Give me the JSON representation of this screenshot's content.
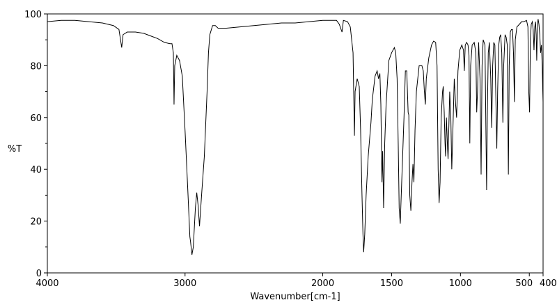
{
  "chart_data": {
    "type": "line",
    "title": "",
    "xlabel": "Wavenumber[cm-1]",
    "ylabel": "%T",
    "xlim": [
      4000,
      400
    ],
    "ylim": [
      0,
      100
    ],
    "x_reversed": true,
    "grid": false,
    "legend": "none",
    "line_color": "#000000",
    "x_ticks": [
      {
        "value": 4000,
        "label": "4000"
      },
      {
        "value": 3000,
        "label": "3000"
      },
      {
        "value": 2000,
        "label": "2000"
      },
      {
        "value": 1500,
        "label": "1500"
      },
      {
        "value": 1000,
        "label": "1000"
      },
      {
        "value": 500,
        "label": "500"
      },
      {
        "value": 400,
        "label": "400"
      }
    ],
    "y_ticks": [
      {
        "value": 0,
        "label": "0"
      },
      {
        "value": 20,
        "label": "20"
      },
      {
        "value": 40,
        "label": "40"
      },
      {
        "value": 60,
        "label": "60"
      },
      {
        "value": 80,
        "label": "80"
      },
      {
        "value": 100,
        "label": "100"
      }
    ],
    "series": [
      {
        "points": [
          [
            4000,
            97
          ],
          [
            3900,
            97.5
          ],
          [
            3800,
            97.5
          ],
          [
            3700,
            97
          ],
          [
            3600,
            96.5
          ],
          [
            3520,
            95.5
          ],
          [
            3480,
            94
          ],
          [
            3460,
            87
          ],
          [
            3450,
            92
          ],
          [
            3420,
            93
          ],
          [
            3360,
            93
          ],
          [
            3300,
            92.5
          ],
          [
            3250,
            91.5
          ],
          [
            3200,
            90.5
          ],
          [
            3150,
            89
          ],
          [
            3110,
            88.5
          ],
          [
            3095,
            88.5
          ],
          [
            3085,
            85
          ],
          [
            3080,
            65
          ],
          [
            3075,
            80
          ],
          [
            3060,
            84
          ],
          [
            3040,
            82
          ],
          [
            3020,
            76
          ],
          [
            3000,
            55
          ],
          [
            2980,
            32
          ],
          [
            2965,
            14
          ],
          [
            2960,
            12
          ],
          [
            2950,
            7
          ],
          [
            2940,
            10
          ],
          [
            2925,
            25
          ],
          [
            2915,
            31
          ],
          [
            2905,
            26
          ],
          [
            2895,
            18
          ],
          [
            2880,
            30
          ],
          [
            2860,
            45
          ],
          [
            2840,
            70
          ],
          [
            2830,
            85
          ],
          [
            2820,
            92
          ],
          [
            2800,
            95.5
          ],
          [
            2780,
            95.5
          ],
          [
            2760,
            94.5
          ],
          [
            2700,
            94.5
          ],
          [
            2600,
            95
          ],
          [
            2500,
            95.5
          ],
          [
            2400,
            96
          ],
          [
            2300,
            96.5
          ],
          [
            2200,
            96.5
          ],
          [
            2100,
            97
          ],
          [
            2000,
            97.5
          ],
          [
            1900,
            97.5
          ],
          [
            1880,
            96
          ],
          [
            1860,
            93
          ],
          [
            1850,
            97.5
          ],
          [
            1820,
            97
          ],
          [
            1800,
            95
          ],
          [
            1780,
            85
          ],
          [
            1770,
            53
          ],
          [
            1765,
            70
          ],
          [
            1750,
            75
          ],
          [
            1735,
            72
          ],
          [
            1725,
            55
          ],
          [
            1715,
            30
          ],
          [
            1708,
            15
          ],
          [
            1703,
            8
          ],
          [
            1695,
            15
          ],
          [
            1685,
            30
          ],
          [
            1670,
            45
          ],
          [
            1650,
            58
          ],
          [
            1640,
            67
          ],
          [
            1620,
            76
          ],
          [
            1605,
            78
          ],
          [
            1595,
            75
          ],
          [
            1585,
            77
          ],
          [
            1578,
            65
          ],
          [
            1570,
            35
          ],
          [
            1565,
            47
          ],
          [
            1558,
            25
          ],
          [
            1550,
            50
          ],
          [
            1540,
            65
          ],
          [
            1520,
            82
          ],
          [
            1500,
            85
          ],
          [
            1480,
            87
          ],
          [
            1470,
            85
          ],
          [
            1460,
            75
          ],
          [
            1452,
            50
          ],
          [
            1445,
            25
          ],
          [
            1437,
            19
          ],
          [
            1430,
            30
          ],
          [
            1420,
            45
          ],
          [
            1410,
            60
          ],
          [
            1400,
            78
          ],
          [
            1390,
            78
          ],
          [
            1380,
            62
          ],
          [
            1375,
            61
          ],
          [
            1368,
            30
          ],
          [
            1360,
            24
          ],
          [
            1352,
            35
          ],
          [
            1345,
            42
          ],
          [
            1338,
            35
          ],
          [
            1330,
            55
          ],
          [
            1320,
            70
          ],
          [
            1300,
            80
          ],
          [
            1280,
            80
          ],
          [
            1270,
            78
          ],
          [
            1262,
            70
          ],
          [
            1255,
            65
          ],
          [
            1248,
            75
          ],
          [
            1230,
            83
          ],
          [
            1210,
            88
          ],
          [
            1195,
            89.5
          ],
          [
            1180,
            89
          ],
          [
            1170,
            80
          ],
          [
            1162,
            40
          ],
          [
            1155,
            27
          ],
          [
            1148,
            35
          ],
          [
            1140,
            60
          ],
          [
            1130,
            70
          ],
          [
            1125,
            72
          ],
          [
            1118,
            62
          ],
          [
            1112,
            50
          ],
          [
            1108,
            45
          ],
          [
            1102,
            60
          ],
          [
            1095,
            50
          ],
          [
            1090,
            44
          ],
          [
            1085,
            55
          ],
          [
            1078,
            70
          ],
          [
            1070,
            60
          ],
          [
            1063,
            40
          ],
          [
            1055,
            55
          ],
          [
            1045,
            75
          ],
          [
            1035,
            65
          ],
          [
            1028,
            60
          ],
          [
            1018,
            78
          ],
          [
            1005,
            86
          ],
          [
            990,
            88
          ],
          [
            978,
            86
          ],
          [
            972,
            78
          ],
          [
            965,
            88
          ],
          [
            955,
            89
          ],
          [
            945,
            88
          ],
          [
            938,
            84
          ],
          [
            932,
            50
          ],
          [
            926,
            80
          ],
          [
            915,
            88
          ],
          [
            900,
            89
          ],
          [
            888,
            85
          ],
          [
            882,
            62
          ],
          [
            876,
            70
          ],
          [
            868,
            89
          ],
          [
            858,
            75
          ],
          [
            850,
            38
          ],
          [
            843,
            80
          ],
          [
            835,
            90
          ],
          [
            822,
            88
          ],
          [
            815,
            55
          ],
          [
            810,
            32
          ],
          [
            805,
            60
          ],
          [
            798,
            85
          ],
          [
            790,
            89
          ],
          [
            780,
            75
          ],
          [
            773,
            56
          ],
          [
            766,
            80
          ],
          [
            758,
            89
          ],
          [
            750,
            88
          ],
          [
            742,
            65
          ],
          [
            736,
            48
          ],
          [
            730,
            70
          ],
          [
            722,
            88
          ],
          [
            715,
            91
          ],
          [
            708,
            92
          ],
          [
            700,
            85
          ],
          [
            692,
            58
          ],
          [
            686,
            80
          ],
          [
            676,
            92
          ],
          [
            668,
            91
          ],
          [
            660,
            88
          ],
          [
            652,
            38
          ],
          [
            646,
            80
          ],
          [
            638,
            93
          ],
          [
            630,
            94
          ],
          [
            622,
            94
          ],
          [
            615,
            85
          ],
          [
            608,
            66
          ],
          [
            602,
            90
          ],
          [
            590,
            95
          ],
          [
            572,
            96
          ],
          [
            556,
            97
          ],
          [
            540,
            97
          ],
          [
            520,
            97.5
          ],
          [
            510,
            95
          ],
          [
            504,
            70
          ],
          [
            498,
            62
          ],
          [
            492,
            90
          ],
          [
            486,
            96
          ],
          [
            478,
            97
          ],
          [
            472,
            94
          ],
          [
            466,
            86
          ],
          [
            460,
            95
          ],
          [
            455,
            97
          ],
          [
            450,
            92
          ],
          [
            446,
            82
          ],
          [
            441,
            96
          ],
          [
            436,
            98
          ],
          [
            430,
            96
          ],
          [
            424,
            92
          ],
          [
            418,
            85
          ],
          [
            412,
            88
          ],
          [
            406,
            80
          ],
          [
            402,
            70
          ],
          [
            400,
            66
          ]
        ]
      }
    ]
  }
}
